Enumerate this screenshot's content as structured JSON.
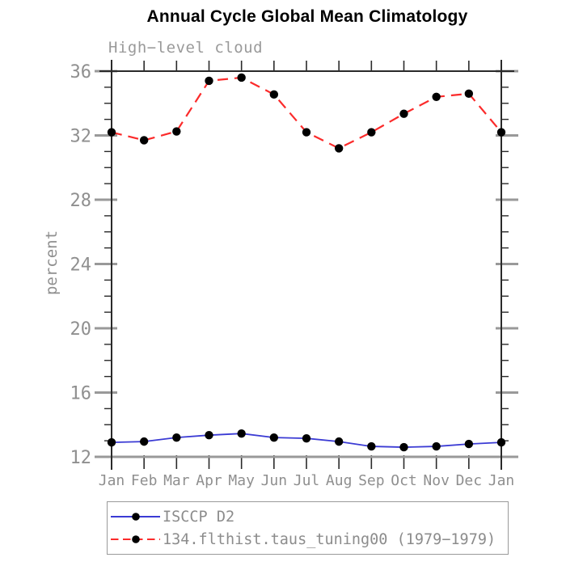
{
  "title": "Annual Cycle Global Mean Climatology",
  "subtitle": "High−level cloud",
  "chart_data": {
    "type": "line",
    "categories": [
      "Jan",
      "Feb",
      "Mar",
      "Apr",
      "May",
      "Jun",
      "Jul",
      "Aug",
      "Sep",
      "Oct",
      "Nov",
      "Dec",
      "Jan"
    ],
    "xlabel": "",
    "ylabel": "percent",
    "ylim": [
      12,
      36
    ],
    "yticks": [
      12,
      16,
      20,
      24,
      28,
      32,
      36
    ],
    "ytick_minor_step": 1,
    "grid": false,
    "legend_position": "bottom",
    "series": [
      {
        "name": "ISCCP D2",
        "color": "#3b3bd4",
        "line_style": "solid",
        "marker": "black-dot",
        "values": [
          12.9,
          12.95,
          13.2,
          13.35,
          13.45,
          13.2,
          13.15,
          12.95,
          12.65,
          12.6,
          12.65,
          12.8,
          12.9
        ]
      },
      {
        "name": "134.flthist.taus_tuning00 (1979−1979)",
        "color": "#fb2b2b",
        "line_style": "dashed",
        "marker": "black-dot",
        "values": [
          32.2,
          31.7,
          32.25,
          35.4,
          35.6,
          34.55,
          32.2,
          31.2,
          32.2,
          33.35,
          34.4,
          34.6,
          32.2
        ]
      }
    ]
  },
  "colors": {
    "axis": "#2a2a2a",
    "axis_bottom": "#999999",
    "major_tick": "#999999",
    "text_gray": "#8f8f8f",
    "marker": "#000000",
    "title": "#000000"
  }
}
